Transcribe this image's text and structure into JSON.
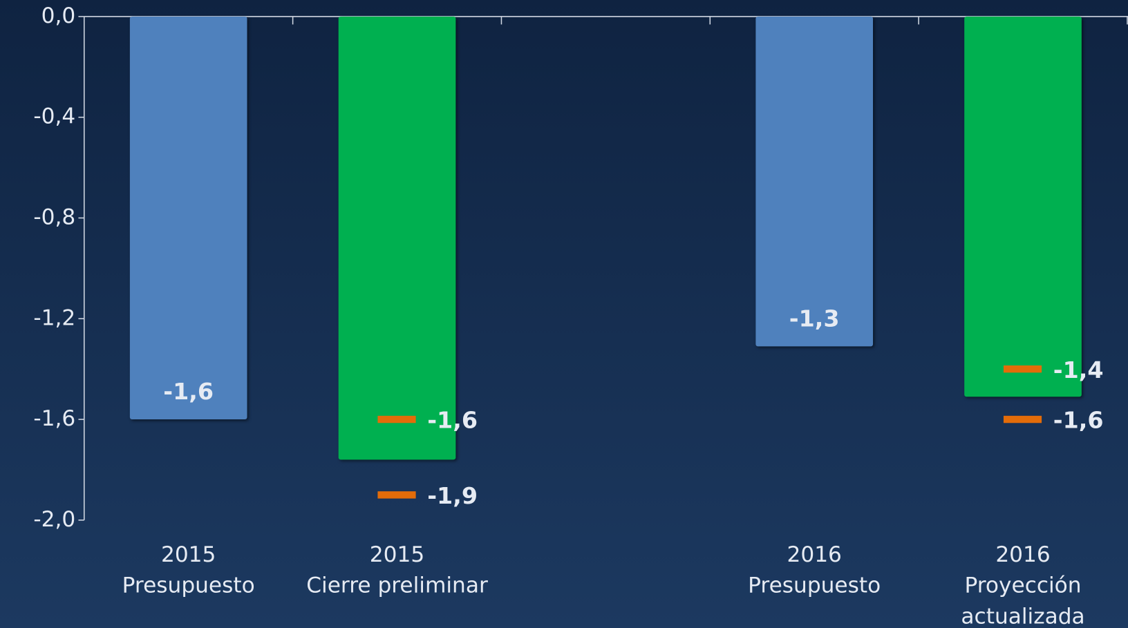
{
  "chart_data": {
    "type": "bar",
    "categories": [
      [
        "2015",
        "Presupuesto"
      ],
      [
        "2015",
        "Cierre preliminar"
      ],
      null,
      [
        "2016",
        "Presupuesto"
      ],
      [
        "2016",
        "Proyección",
        "actualizada"
      ]
    ],
    "values": [
      -1.6,
      -1.76,
      null,
      -1.31,
      -1.51
    ],
    "value_labels": [
      "-1,6",
      null,
      null,
      "-1,3",
      null
    ],
    "colors": [
      "#4f81bd",
      "#00b050",
      null,
      "#4f81bd",
      "#00b050"
    ],
    "markers": [
      {
        "category": 1,
        "value": -1.6,
        "label": "-1,6"
      },
      {
        "category": 1,
        "value": -1.9,
        "label": "-1,9"
      },
      {
        "category": 4,
        "value": -1.4,
        "label": "-1,4"
      },
      {
        "category": 4,
        "value": -1.6,
        "label": "-1,6"
      }
    ],
    "marker_color": "#e36c09",
    "ylim": [
      -2,
      0
    ],
    "yticks": [
      {
        "value": 0,
        "label": "0,0"
      },
      {
        "value": -0.4,
        "label": "-0,4"
      },
      {
        "value": -0.8,
        "label": "-0,8"
      },
      {
        "value": -1.2,
        "label": "-1,2"
      },
      {
        "value": -1.6,
        "label": "-1,6"
      },
      {
        "value": -2,
        "label": "-2,0"
      }
    ]
  }
}
